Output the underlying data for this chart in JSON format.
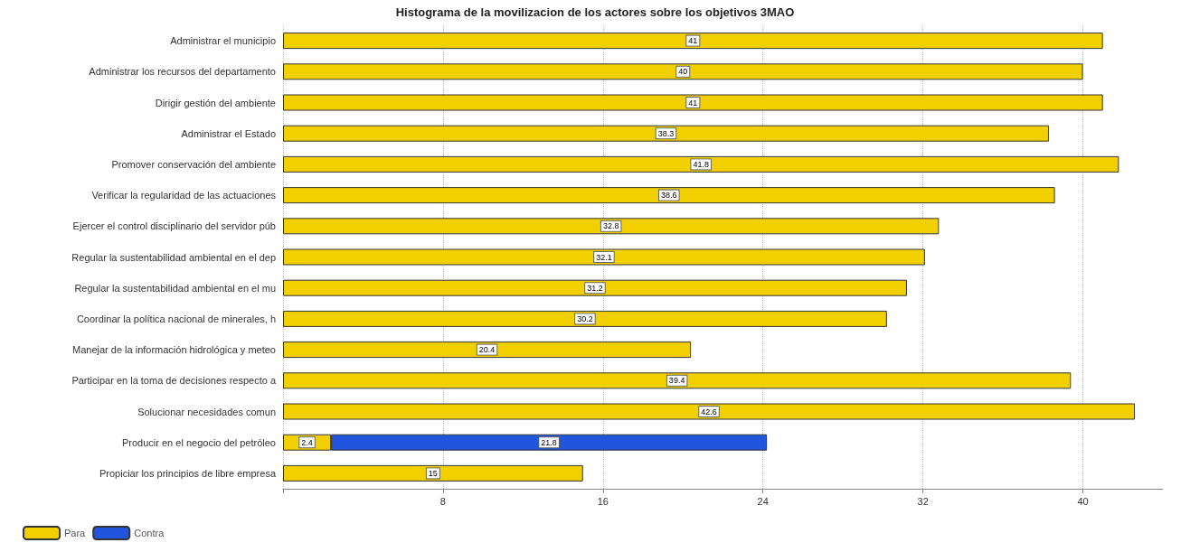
{
  "chart_data": {
    "type": "bar",
    "orientation": "horizontal",
    "stacked": true,
    "title": "Histograma de la movilizacion de los actores sobre los objetivos 3MAO",
    "categories": [
      "Administrar el municipio",
      "Administrar los recursos del departamento",
      "Dirigir gestión del ambiente",
      "Administrar el Estado",
      "Promover conservación del ambiente",
      "Verificar la regularidad de las actuaciones",
      "Ejercer el control disciplinario del servidor púb",
      "Regular la sustentabilidad ambiental en el dep",
      "Regular la sustentabilidad ambiental en el mu",
      "Coordinar la política nacional de minerales, h",
      "Manejar de la información hidrológica y meteo",
      "Participar en la toma de decisiones respecto a",
      "Solucionar necesidades comun",
      "Producir en el negocio del petróleo",
      "Propiciar los principios de libre empresa"
    ],
    "series": [
      {
        "name": "Para",
        "color": "#f2d000",
        "values": [
          41,
          40,
          41,
          38.3,
          41.8,
          38.6,
          32.8,
          32.1,
          31.2,
          30.2,
          20.4,
          39.4,
          42.6,
          2.4,
          15
        ]
      },
      {
        "name": "Contra",
        "color": "#2255dd",
        "values": [
          null,
          null,
          null,
          null,
          null,
          null,
          null,
          null,
          null,
          null,
          null,
          null,
          null,
          21.8,
          null
        ]
      }
    ],
    "xlim": [
      0,
      44
    ],
    "xticks": [
      {
        "value": 0,
        "label": null
      },
      8,
      16,
      24,
      32,
      40
    ],
    "grid": "x",
    "legend": "bottom left",
    "data_labels": true
  }
}
